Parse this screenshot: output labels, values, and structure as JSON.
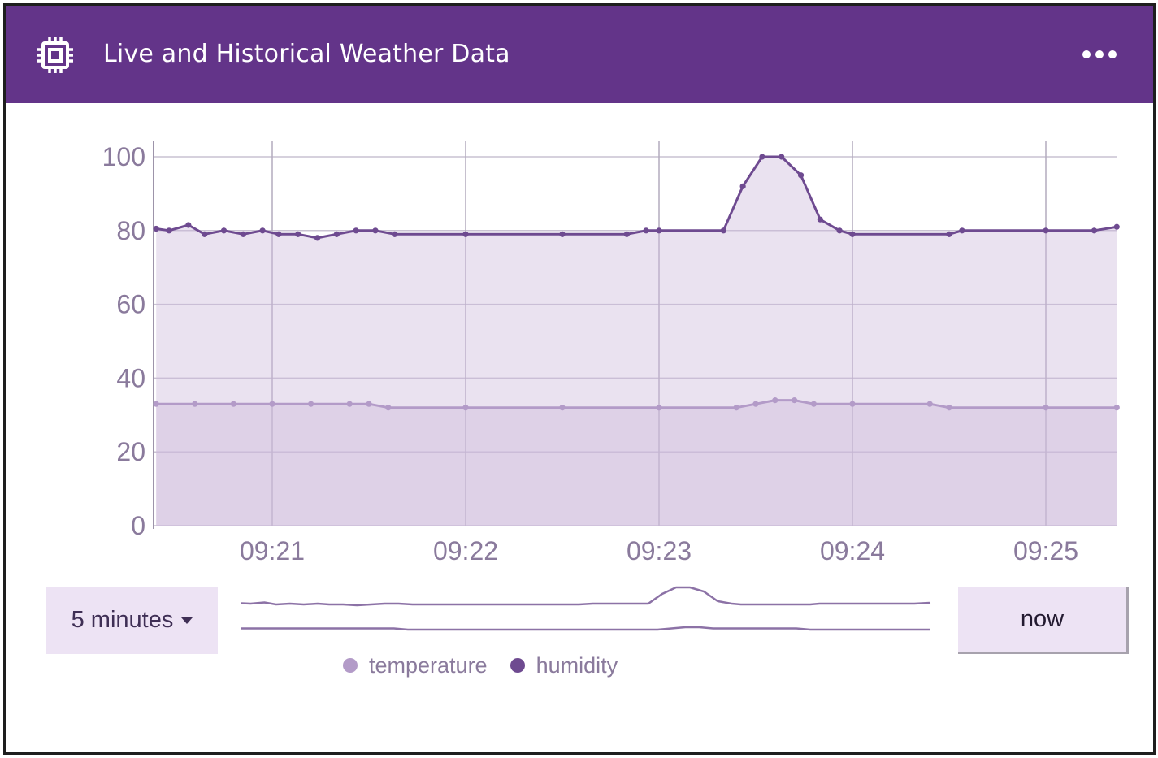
{
  "header": {
    "title": "Live and Historical Weather Data",
    "icon": "chip-icon",
    "menu_icon": "more-horizontal-icon",
    "background_color": "#633489"
  },
  "chart_data": {
    "type": "area",
    "x_unit": "time (HH:MM)",
    "x_ticks": [
      "09:21",
      "09:22",
      "09:23",
      "09:24",
      "09:25"
    ],
    "ylim": [
      0,
      100
    ],
    "y_ticks": [
      0,
      20,
      40,
      60,
      80,
      100
    ],
    "grid": true,
    "legend_position": "bottom-center",
    "series": [
      {
        "name": "temperature",
        "color": "#b39bc8",
        "points": [
          [
            "09:20:24",
            33
          ],
          [
            "09:20:36",
            33
          ],
          [
            "09:20:48",
            33
          ],
          [
            "09:21:00",
            33
          ],
          [
            "09:21:12",
            33
          ],
          [
            "09:21:24",
            33
          ],
          [
            "09:21:30",
            33
          ],
          [
            "09:21:36",
            32
          ],
          [
            "09:22:00",
            32
          ],
          [
            "09:22:30",
            32
          ],
          [
            "09:23:00",
            32
          ],
          [
            "09:23:24",
            32
          ],
          [
            "09:23:30",
            33
          ],
          [
            "09:23:36",
            34
          ],
          [
            "09:23:42",
            34
          ],
          [
            "09:23:48",
            33
          ],
          [
            "09:24:00",
            33
          ],
          [
            "09:24:24",
            33
          ],
          [
            "09:24:30",
            32
          ],
          [
            "09:25:00",
            32
          ],
          [
            "09:25:22",
            32
          ]
        ]
      },
      {
        "name": "humidity",
        "color": "#6e4a90",
        "points": [
          [
            "09:20:24",
            80.5
          ],
          [
            "09:20:28",
            80
          ],
          [
            "09:20:34",
            81.5
          ],
          [
            "09:20:39",
            79
          ],
          [
            "09:20:45",
            80
          ],
          [
            "09:20:51",
            79
          ],
          [
            "09:20:57",
            80
          ],
          [
            "09:21:02",
            79
          ],
          [
            "09:21:08",
            79
          ],
          [
            "09:21:14",
            78
          ],
          [
            "09:21:20",
            79
          ],
          [
            "09:21:26",
            80
          ],
          [
            "09:21:32",
            80
          ],
          [
            "09:21:38",
            79
          ],
          [
            "09:22:00",
            79
          ],
          [
            "09:22:30",
            79
          ],
          [
            "09:22:50",
            79
          ],
          [
            "09:22:56",
            80
          ],
          [
            "09:23:00",
            80
          ],
          [
            "09:23:20",
            80
          ],
          [
            "09:23:26",
            92
          ],
          [
            "09:23:32",
            100
          ],
          [
            "09:23:38",
            100
          ],
          [
            "09:23:44",
            95
          ],
          [
            "09:23:50",
            83
          ],
          [
            "09:23:56",
            80
          ],
          [
            "09:24:00",
            79
          ],
          [
            "09:24:30",
            79
          ],
          [
            "09:24:34",
            80
          ],
          [
            "09:25:00",
            80
          ],
          [
            "09:25:15",
            80
          ],
          [
            "09:25:22",
            81
          ]
        ]
      }
    ]
  },
  "controls": {
    "range_label": "5 minutes",
    "now_label": "now"
  }
}
